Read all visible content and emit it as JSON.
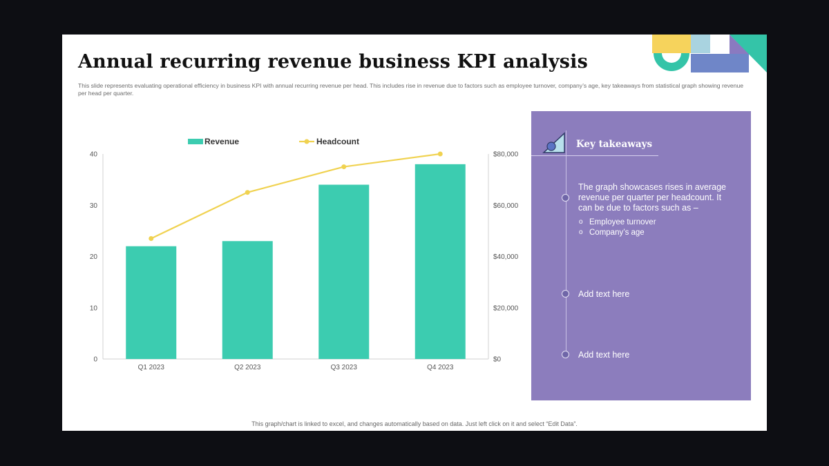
{
  "title": "Annual recurring revenue business KPI analysis",
  "subtitle": "This slide represents evaluating operational efficiency in business KPI with annual recurring revenue per head. This includes rise in revenue due to factors such as employee turnover, company’s age, key takeaways from statistical graph showing revenue per head per quarter.",
  "footer": "This graph/chart is linked to excel, and changes automatically based on data. Just left click on it and select “Edit Data”.",
  "takeaways": {
    "title": "Key takeaways",
    "items": [
      {
        "text": "The graph showcases rises in average revenue per quarter per headcount. It can be due to factors such as –",
        "subitems": [
          "Employee turnover",
          "Company’s age"
        ]
      },
      {
        "text": "Add text here"
      },
      {
        "text": "Add text here"
      }
    ]
  },
  "colors": {
    "revenue": "#3cccb0",
    "headcount": "#f0d250",
    "panel": "#8c7dbd",
    "deco_yellow": "#f6d35c",
    "deco_teal": "#34c4a8",
    "deco_lightblue": "#a9d3e0",
    "deco_blue": "#6f86c8",
    "deco_purple": "#8a7ac0"
  },
  "chart_data": {
    "type": "bar",
    "categories": [
      "Q1 2023",
      "Q2 2023",
      "Q3 2023",
      "Q4 2023"
    ],
    "series": [
      {
        "name": "Revenue",
        "type": "bar",
        "axis": "left",
        "values": [
          22,
          23,
          34,
          38
        ]
      },
      {
        "name": "Headcount",
        "type": "line",
        "axis": "right",
        "values": [
          47000,
          65000,
          75000,
          80000
        ]
      }
    ],
    "y_left": {
      "range": [
        0,
        40
      ],
      "ticks": [
        0,
        10,
        20,
        30,
        40
      ],
      "tick_labels": [
        "0",
        "10",
        "20",
        "30",
        "40"
      ]
    },
    "y_right": {
      "range": [
        0,
        80000
      ],
      "ticks": [
        0,
        20000,
        40000,
        60000,
        80000
      ],
      "tick_labels": [
        "$0",
        "$20,000",
        "$40,000",
        "$60,000",
        "$80,000"
      ]
    },
    "legend_position": "top",
    "grid": false
  }
}
